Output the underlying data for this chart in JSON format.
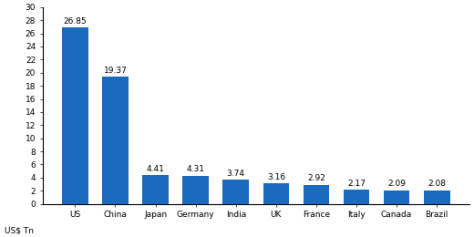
{
  "categories": [
    "US",
    "China",
    "Japan",
    "Germany",
    "India",
    "UK",
    "France",
    "Italy",
    "Canada",
    "Brazil"
  ],
  "values": [
    26.85,
    19.37,
    4.41,
    4.31,
    3.74,
    3.16,
    2.92,
    2.17,
    2.09,
    2.08
  ],
  "bar_color": "#1a6bbf",
  "ylim": [
    0,
    30
  ],
  "yticks": [
    0,
    2,
    4,
    6,
    8,
    10,
    12,
    14,
    16,
    18,
    20,
    22,
    24,
    26,
    28,
    30
  ],
  "ylabel_text": "US$ Tn",
  "background_color": "#ffffff",
  "label_fontsize": 6.5,
  "tick_fontsize": 6.5,
  "ylabel_fontsize": 6.5
}
